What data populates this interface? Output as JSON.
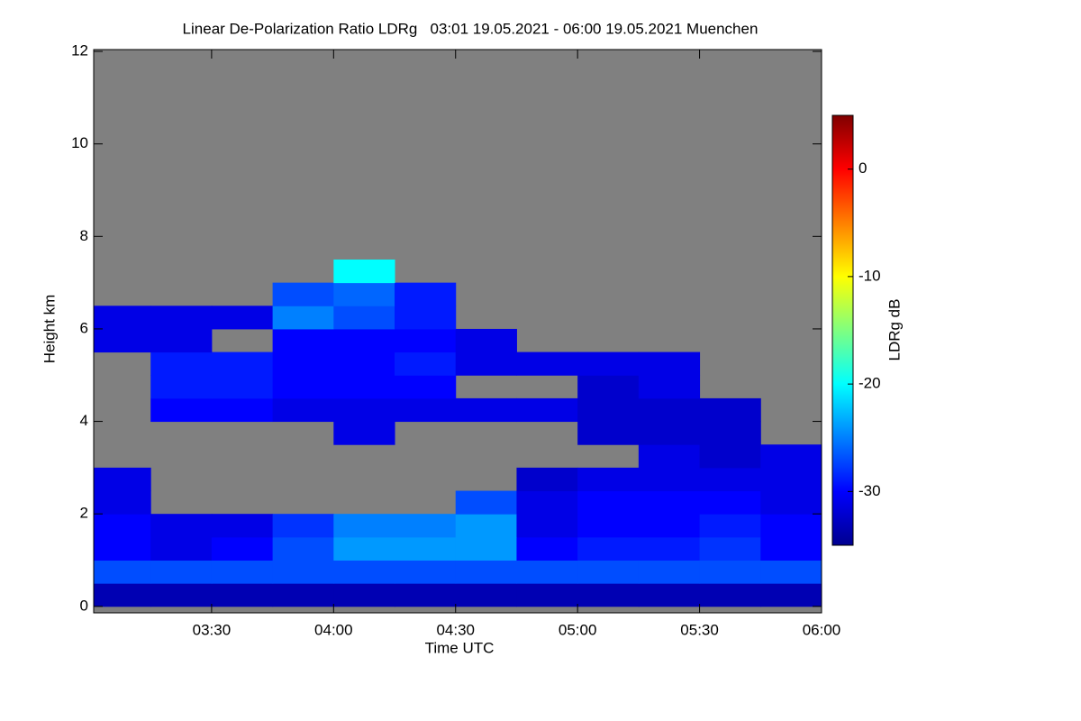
{
  "chart_data": {
    "type": "heatmap",
    "title": "Linear De-Polarization Ratio LDRg   03:01 19.05.2021 - 06:00 19.05.2021 Muenchen",
    "x_label": "Time UTC",
    "y_label": "Height km",
    "colorbar_label": "LDRg dB",
    "colormap": "jet",
    "missing_color": "#808080",
    "xlim": [
      3.0167,
      6.0
    ],
    "xticks": [
      {
        "value": 3.5,
        "label": "03:30"
      },
      {
        "value": 4.0,
        "label": "04:00"
      },
      {
        "value": 4.5,
        "label": "04:30"
      },
      {
        "value": 5.0,
        "label": "05:00"
      },
      {
        "value": 5.5,
        "label": "05:30"
      },
      {
        "value": 6.0,
        "label": "06:00"
      }
    ],
    "ylim": [
      -0.14,
      12.04
    ],
    "yticks": [
      0,
      2,
      4,
      6,
      8,
      10,
      12
    ],
    "clim": [
      -35,
      5
    ],
    "cticks": [
      0,
      -10,
      -20,
      -30
    ],
    "x_edges": [
      3.0,
      3.25,
      3.5,
      3.75,
      4.0,
      4.25,
      4.5,
      4.75,
      5.0,
      5.25,
      5.5,
      5.75,
      6.0
    ],
    "y_edges": [
      0,
      0.5,
      1,
      1.5,
      2,
      2.5,
      3,
      3.5,
      4,
      4.5,
      5,
      5.5,
      6,
      6.5,
      7,
      7.5
    ],
    "z": [
      [
        -33,
        -33,
        -33,
        -33,
        -33,
        -33,
        -33,
        -33,
        -33,
        -33,
        -33,
        -33
      ],
      [
        -27,
        -27,
        -27,
        -27,
        -27,
        -27,
        -27,
        -27,
        -27,
        -27,
        -27,
        -27
      ],
      [
        -30,
        -31,
        -30,
        -27,
        -24,
        -24,
        -24,
        -30,
        -29,
        -29,
        -28,
        -30
      ],
      [
        -30,
        -31,
        -31,
        -28,
        -25,
        -25,
        -24,
        -31,
        -30,
        -30,
        -29,
        -30
      ],
      [
        -31,
        null,
        null,
        null,
        null,
        null,
        -27,
        -31,
        -30,
        -30,
        -30,
        -31
      ],
      [
        -31,
        null,
        null,
        null,
        null,
        null,
        null,
        -32,
        -31,
        -31,
        -31,
        -31
      ],
      [
        null,
        null,
        null,
        null,
        null,
        null,
        null,
        null,
        null,
        -31,
        -32,
        -31
      ],
      [
        null,
        null,
        null,
        null,
        -31,
        null,
        null,
        null,
        -32,
        -32,
        -32,
        null
      ],
      [
        null,
        -30,
        -30,
        -31,
        -31,
        -31,
        -31,
        -31,
        -32,
        -32,
        -32,
        null
      ],
      [
        null,
        -29,
        -29,
        -30,
        -30,
        -30,
        null,
        null,
        -32,
        -31,
        null,
        null
      ],
      [
        null,
        -29,
        -29,
        -30,
        -30,
        -29,
        -31,
        -31,
        -31,
        -31,
        null,
        null
      ],
      [
        -31,
        -31,
        null,
        -30,
        -30,
        -30,
        -31,
        null,
        null,
        null,
        null,
        null
      ],
      [
        -31,
        -31,
        -31,
        -25,
        -27,
        -29,
        null,
        null,
        null,
        null,
        null,
        null
      ],
      [
        null,
        null,
        null,
        -27,
        -26,
        -29,
        null,
        null,
        null,
        null,
        null,
        null
      ],
      [
        null,
        null,
        null,
        null,
        -20,
        null,
        null,
        null,
        null,
        null,
        null,
        null
      ]
    ]
  }
}
